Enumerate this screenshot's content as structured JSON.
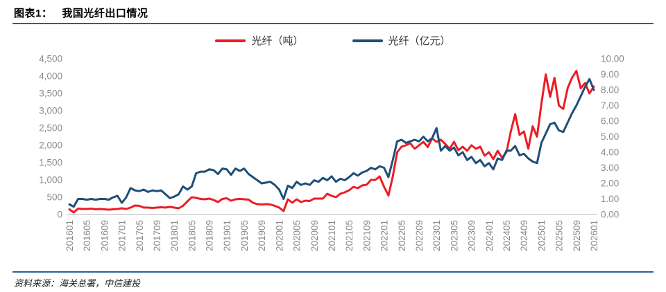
{
  "figure": {
    "label": "图表1：",
    "title": "我国光纤出口情况",
    "source": "资料来源：海关总署，中信建投"
  },
  "colors": {
    "series_red": "#ed1c24",
    "series_blue": "#1f4e79",
    "rule_blue": "#2a5f96",
    "axis_text": "#8a8a8a",
    "axis_line": "#d9d9d9"
  },
  "chart_data": {
    "type": "line",
    "title": "我国光纤出口情况",
    "grid": false,
    "legend_position": "top-center",
    "x_tick_every": 4,
    "left_axis": {
      "min": 0,
      "max": 4500,
      "step": 500,
      "format": "thousands"
    },
    "right_axis": {
      "min": 0,
      "max": 10,
      "step": 1,
      "format": "2dp"
    },
    "x": [
      "201601",
      "201602",
      "201603",
      "201604",
      "201605",
      "201606",
      "201607",
      "201608",
      "201609",
      "201610",
      "201611",
      "201612",
      "201701",
      "201702",
      "201703",
      "201704",
      "201705",
      "201706",
      "201707",
      "201708",
      "201709",
      "201710",
      "201711",
      "201712",
      "201801",
      "201802",
      "201803",
      "201804",
      "201805",
      "201806",
      "201807",
      "201808",
      "201809",
      "201810",
      "201811",
      "201812",
      "201901",
      "201902",
      "201903",
      "201904",
      "201905",
      "201906",
      "201907",
      "201908",
      "201909",
      "201910",
      "201911",
      "201912",
      "202001",
      "202002",
      "202003",
      "202004",
      "202005",
      "202006",
      "202007",
      "202008",
      "202009",
      "202010",
      "202011",
      "202012",
      "202101",
      "202102",
      "202103",
      "202104",
      "202105",
      "202106",
      "202107",
      "202108",
      "202109",
      "202110",
      "202111",
      "202112",
      "202201",
      "202202",
      "202203",
      "202204",
      "202205",
      "202206",
      "202207",
      "202208",
      "202209",
      "202210",
      "202211",
      "202212",
      "202301",
      "202302",
      "202303",
      "202304",
      "202305",
      "202306",
      "202307",
      "202308",
      "202309",
      "202310",
      "202311",
      "202312",
      "202401",
      "202402",
      "202403",
      "202404",
      "202405",
      "202406",
      "202407",
      "202408",
      "202409",
      "202410",
      "202411",
      "202412",
      "202501",
      "202502",
      "202503",
      "202504",
      "202505",
      "202506",
      "202507",
      "202508",
      "202509",
      "202510",
      "202511",
      "202512",
      "202601"
    ],
    "series": [
      {
        "name": "光纤（吨）",
        "axis": "left",
        "color": "#ed1c24",
        "values": [
          150,
          60,
          170,
          160,
          160,
          170,
          150,
          160,
          150,
          140,
          150,
          160,
          180,
          160,
          200,
          260,
          250,
          200,
          200,
          190,
          200,
          210,
          200,
          220,
          200,
          180,
          250,
          380,
          500,
          480,
          450,
          440,
          460,
          420,
          360,
          450,
          470,
          400,
          440,
          450,
          440,
          430,
          340,
          300,
          290,
          300,
          290,
          250,
          200,
          100,
          440,
          340,
          440,
          360,
          400,
          390,
          460,
          460,
          460,
          600,
          540,
          500,
          600,
          640,
          700,
          800,
          760,
          840,
          860,
          1000,
          1000,
          1100,
          800,
          550,
          1100,
          1800,
          1960,
          2000,
          2060,
          1900,
          2000,
          2100,
          1950,
          2200,
          2100,
          2160,
          2040,
          1900,
          2100,
          1860,
          1960,
          1840,
          2000,
          1900,
          1960,
          1700,
          1800,
          1600,
          1840,
          1640,
          1800,
          2400,
          2900,
          2300,
          2400,
          1900,
          2550,
          2250,
          3200,
          4050,
          3400,
          3950,
          3150,
          3050,
          3650,
          3950,
          4150,
          3650,
          3800,
          3500,
          3700
        ]
      },
      {
        "name": "光纤（亿元）",
        "axis": "right",
        "color": "#1f4e79",
        "values": [
          0.65,
          0.5,
          1.0,
          1.0,
          0.95,
          1.0,
          0.95,
          1.0,
          1.0,
          0.95,
          1.1,
          1.2,
          0.75,
          1.1,
          1.7,
          1.55,
          1.5,
          1.6,
          1.45,
          1.55,
          1.5,
          1.55,
          1.3,
          1.05,
          1.15,
          1.3,
          1.8,
          1.6,
          1.8,
          2.65,
          2.75,
          2.75,
          2.9,
          2.85,
          2.6,
          2.95,
          2.9,
          2.55,
          2.95,
          2.8,
          2.95,
          2.6,
          2.4,
          2.2,
          2.0,
          2.05,
          2.1,
          1.9,
          1.6,
          1.0,
          1.85,
          1.7,
          2.1,
          1.9,
          2.0,
          1.9,
          2.2,
          2.1,
          2.35,
          2.2,
          2.45,
          2.1,
          2.3,
          2.2,
          2.4,
          2.65,
          2.5,
          2.7,
          2.8,
          3.0,
          2.9,
          3.1,
          3.0,
          2.4,
          3.5,
          4.7,
          4.8,
          4.6,
          4.7,
          4.8,
          4.7,
          5.0,
          4.7,
          4.9,
          5.55,
          4.1,
          4.4,
          4.1,
          4.3,
          3.8,
          4.0,
          3.5,
          3.7,
          3.3,
          3.5,
          3.1,
          3.3,
          2.9,
          3.6,
          3.5,
          4.1,
          4.1,
          4.4,
          3.8,
          3.9,
          3.6,
          3.4,
          3.3,
          4.6,
          5.2,
          5.8,
          5.9,
          5.4,
          5.3,
          5.9,
          6.5,
          7.0,
          7.6,
          8.2,
          8.7,
          8.0
        ]
      }
    ]
  }
}
